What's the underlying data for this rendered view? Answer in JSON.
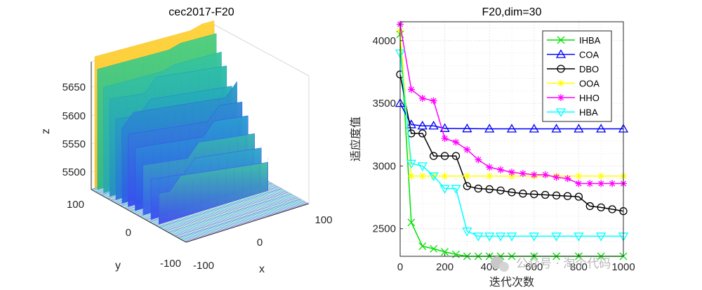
{
  "watermark": "公众号 · 淘个代码",
  "chart_data": [
    {
      "type": "surface3d",
      "title": "cec2017-F20",
      "xlabel": "x",
      "ylabel": "y",
      "zlabel": "z",
      "x_range": [
        -100,
        100
      ],
      "y_range": [
        -100,
        100
      ],
      "z_ticks": [
        5500,
        5550,
        5600,
        5650
      ],
      "x_ticks": [
        "-100",
        "0",
        "100"
      ],
      "y_ticks": [
        "-100",
        "0",
        "100"
      ],
      "z_tick_labels": [
        "5500",
        "5550",
        "5600",
        "5650"
      ]
    },
    {
      "type": "line",
      "title": "F20,dim=30",
      "xlabel": "迭代次数",
      "ylabel": "适应度值",
      "xlim": [
        0,
        1000
      ],
      "ylim": [
        2280,
        4150
      ],
      "x_ticks": [
        0,
        200,
        400,
        600,
        800,
        1000
      ],
      "y_ticks": [
        2500,
        3000,
        3500,
        4000
      ],
      "x_tick_labels": [
        "0",
        "200",
        "400",
        "600",
        "800",
        "1000"
      ],
      "y_tick_labels": [
        "2500",
        "3000",
        "3500",
        "4000"
      ],
      "legend_position": "top-right",
      "series": [
        {
          "name": "IHBA",
          "color": "#00e000",
          "marker": "x",
          "x": [
            0,
            50,
            100,
            150,
            200,
            250,
            300,
            350,
            400,
            450,
            500,
            600,
            700,
            800,
            900,
            1000
          ],
          "y": [
            4050,
            2550,
            2360,
            2340,
            2315,
            2295,
            2275,
            2262,
            2258,
            2256,
            2255,
            2254,
            2253,
            2253,
            2252,
            2252
          ]
        },
        {
          "name": "COA",
          "color": "#0000ff",
          "marker": "^",
          "x": [
            0,
            50,
            100,
            150,
            200,
            300,
            400,
            500,
            600,
            700,
            800,
            900,
            1000
          ],
          "y": [
            3500,
            3330,
            3320,
            3320,
            3300,
            3298,
            3296,
            3296,
            3296,
            3296,
            3296,
            3296,
            3296
          ]
        },
        {
          "name": "DBO",
          "color": "#000000",
          "marker": "o",
          "x": [
            0,
            50,
            100,
            150,
            200,
            250,
            300,
            350,
            400,
            450,
            500,
            550,
            600,
            650,
            700,
            750,
            800,
            850,
            900,
            950,
            1000
          ],
          "y": [
            3730,
            3260,
            3260,
            3080,
            3080,
            3080,
            2840,
            2820,
            2815,
            2805,
            2790,
            2780,
            2775,
            2770,
            2765,
            2760,
            2755,
            2680,
            2670,
            2655,
            2640
          ]
        },
        {
          "name": "OOA",
          "color": "#ffff00",
          "marker": "*",
          "x": [
            0,
            50,
            100,
            150,
            200,
            300,
            400,
            500,
            600,
            700,
            800,
            900,
            1000
          ],
          "y": [
            4080,
            2920,
            2920,
            2920,
            2920,
            2920,
            2920,
            2920,
            2920,
            2920,
            2920,
            2920,
            2920
          ]
        },
        {
          "name": "HHO",
          "color": "#ff00ff",
          "marker": "*",
          "x": [
            0,
            50,
            100,
            150,
            200,
            250,
            300,
            350,
            400,
            450,
            500,
            550,
            600,
            650,
            700,
            750,
            800,
            850,
            900,
            950,
            1000
          ],
          "y": [
            4130,
            3610,
            3540,
            3520,
            3220,
            3190,
            3130,
            3050,
            2990,
            2970,
            2950,
            2940,
            2930,
            2930,
            2910,
            2900,
            2860,
            2860,
            2860,
            2860,
            2860
          ]
        },
        {
          "name": "HBA",
          "color": "#00ffff",
          "marker": "v",
          "x": [
            0,
            50,
            100,
            150,
            200,
            250,
            300,
            350,
            400,
            450,
            500,
            600,
            700,
            800,
            900,
            1000
          ],
          "y": [
            3900,
            3020,
            3000,
            2920,
            2820,
            2820,
            2480,
            2440,
            2440,
            2440,
            2440,
            2440,
            2440,
            2440,
            2440,
            2440
          ]
        }
      ]
    }
  ]
}
